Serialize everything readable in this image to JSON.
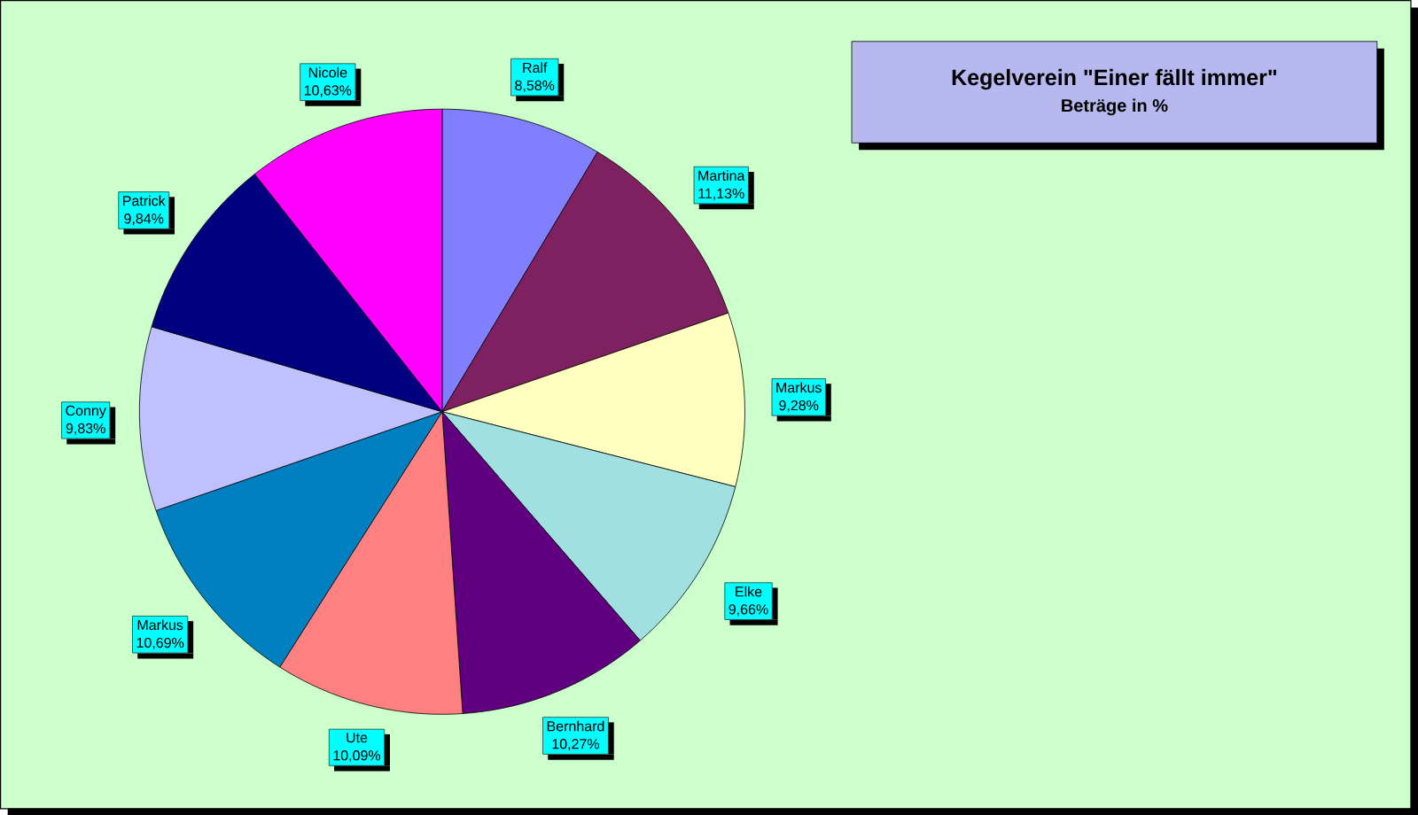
{
  "chart_data": {
    "type": "pie",
    "title": "Kegelverein \"Einer fällt immer\"",
    "subtitle": "Beträge in %",
    "categories": [
      "Ralf",
      "Martina",
      "Markus",
      "Elke",
      "Bernhard",
      "Ute",
      "Markus",
      "Conny",
      "Patrick",
      "Nicole"
    ],
    "values": [
      8.58,
      11.13,
      9.28,
      9.66,
      10.27,
      10.09,
      10.69,
      9.83,
      9.84,
      10.63
    ],
    "value_labels": [
      "8,58%",
      "11,13%",
      "9,28%",
      "9,66%",
      "10,27%",
      "10,09%",
      "10,69%",
      "9,83%",
      "9,84%",
      "10,63%"
    ],
    "colors": [
      "#8080ff",
      "#7f2060",
      "#ffffc0",
      "#a0e0e0",
      "#600080",
      "#ff8080",
      "#0080c0",
      "#c0c0ff",
      "#000080",
      "#ff00ff"
    ]
  }
}
